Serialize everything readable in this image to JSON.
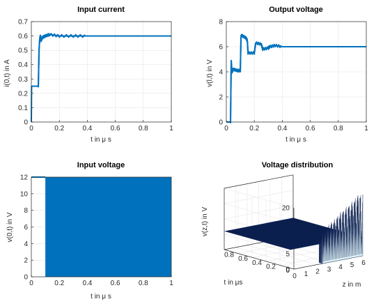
{
  "colors": {
    "line": "#0072BD",
    "grid": "#e6e6e6",
    "axis": "#262626",
    "surface_dark": "#0b1f4f",
    "surface_light": "#dff3f8"
  },
  "chart_data": [
    {
      "type": "line",
      "title": "Input current",
      "xlabel": "t in μ s",
      "ylabel": "i(0,t) in A",
      "xlim": [
        0,
        1
      ],
      "ylim": [
        0,
        0.7
      ],
      "xticks": [
        "0",
        "0.2",
        "0.4",
        "0.6",
        "0.8",
        "1"
      ],
      "yticks": [
        "0",
        "0.1",
        "0.2",
        "0.3",
        "0.4",
        "0.5",
        "0.6",
        "0.7"
      ],
      "grid": true,
      "series": [
        {
          "x": [
            0,
            0.002,
            0.004,
            0.05,
            0.055,
            0.06,
            0.065,
            0.07,
            0.08,
            0.1,
            0.13,
            0.2,
            0.3,
            0.4,
            0.6,
            0.8,
            1.0
          ],
          "y": [
            0,
            0.25,
            0.25,
            0.25,
            0.5,
            0.58,
            0.6,
            0.57,
            0.59,
            0.6,
            0.61,
            0.6,
            0.6,
            0.6,
            0.6,
            0.6,
            0.6
          ]
        }
      ]
    },
    {
      "type": "line",
      "title": "Output voltage",
      "xlabel": "t in μ s",
      "ylabel": "v(l,t) in V",
      "xlim": [
        0,
        1
      ],
      "ylim": [
        0,
        8
      ],
      "xticks": [
        "0",
        "0.2",
        "0.4",
        "0.6",
        "0.8",
        "1"
      ],
      "yticks": [
        "0",
        "2",
        "4",
        "6",
        "8"
      ],
      "grid": true,
      "series": [
        {
          "x": [
            0,
            0.03,
            0.035,
            0.04,
            0.045,
            0.05,
            0.08,
            0.1,
            0.105,
            0.11,
            0.14,
            0.15,
            0.155,
            0.2,
            0.21,
            0.25,
            0.26,
            0.3,
            0.31,
            0.35,
            0.4,
            0.45,
            0.5,
            0.6,
            0.7,
            0.8,
            1.0
          ],
          "y": [
            0,
            0,
            4.9,
            4.0,
            4.1,
            4.2,
            4.1,
            4.1,
            6.8,
            6.9,
            6.7,
            6.5,
            5.5,
            5.5,
            6.3,
            6.2,
            5.8,
            5.9,
            6.0,
            6.1,
            6.0,
            6.0,
            6.0,
            6.0,
            6.0,
            6.0,
            6.0
          ]
        }
      ]
    },
    {
      "type": "area",
      "title": "Input voltage",
      "xlabel": "t in μ s",
      "ylabel": "v(0,t) in V",
      "xlim": [
        0,
        1
      ],
      "ylim": [
        0,
        12
      ],
      "xticks": [
        "0",
        "0.2",
        "0.4",
        "0.6",
        "0.8",
        "1"
      ],
      "yticks": [
        "0",
        "2",
        "4",
        "6",
        "8",
        "10",
        "12"
      ],
      "grid": true,
      "series": [
        {
          "x": [
            0,
            0.1,
            0.1,
            1.0
          ],
          "y_low": [
            12,
            12,
            0,
            0
          ],
          "y_high": [
            12,
            12,
            12,
            12
          ]
        }
      ]
    },
    {
      "type": "surface",
      "title": "Voltage distribution",
      "xlabel": "z in m",
      "ylabel": "t in μs",
      "zlabel": "v(z,t) in V",
      "xlim": [
        0,
        6
      ],
      "ylim": [
        0,
        1
      ],
      "zlim": [
        0,
        20
      ],
      "xticks": [
        "0",
        "1",
        "2",
        "3",
        "4",
        "5",
        "6"
      ],
      "yticks": [
        "0",
        "0.2",
        "0.4",
        "0.6",
        "0.8"
      ],
      "zticks": [
        "0",
        "5",
        "10",
        "15",
        "20"
      ],
      "grid": true,
      "series": [
        {
          "plateau_value": 6,
          "front_edge_t": 0,
          "peak_max": 14
        }
      ]
    }
  ]
}
